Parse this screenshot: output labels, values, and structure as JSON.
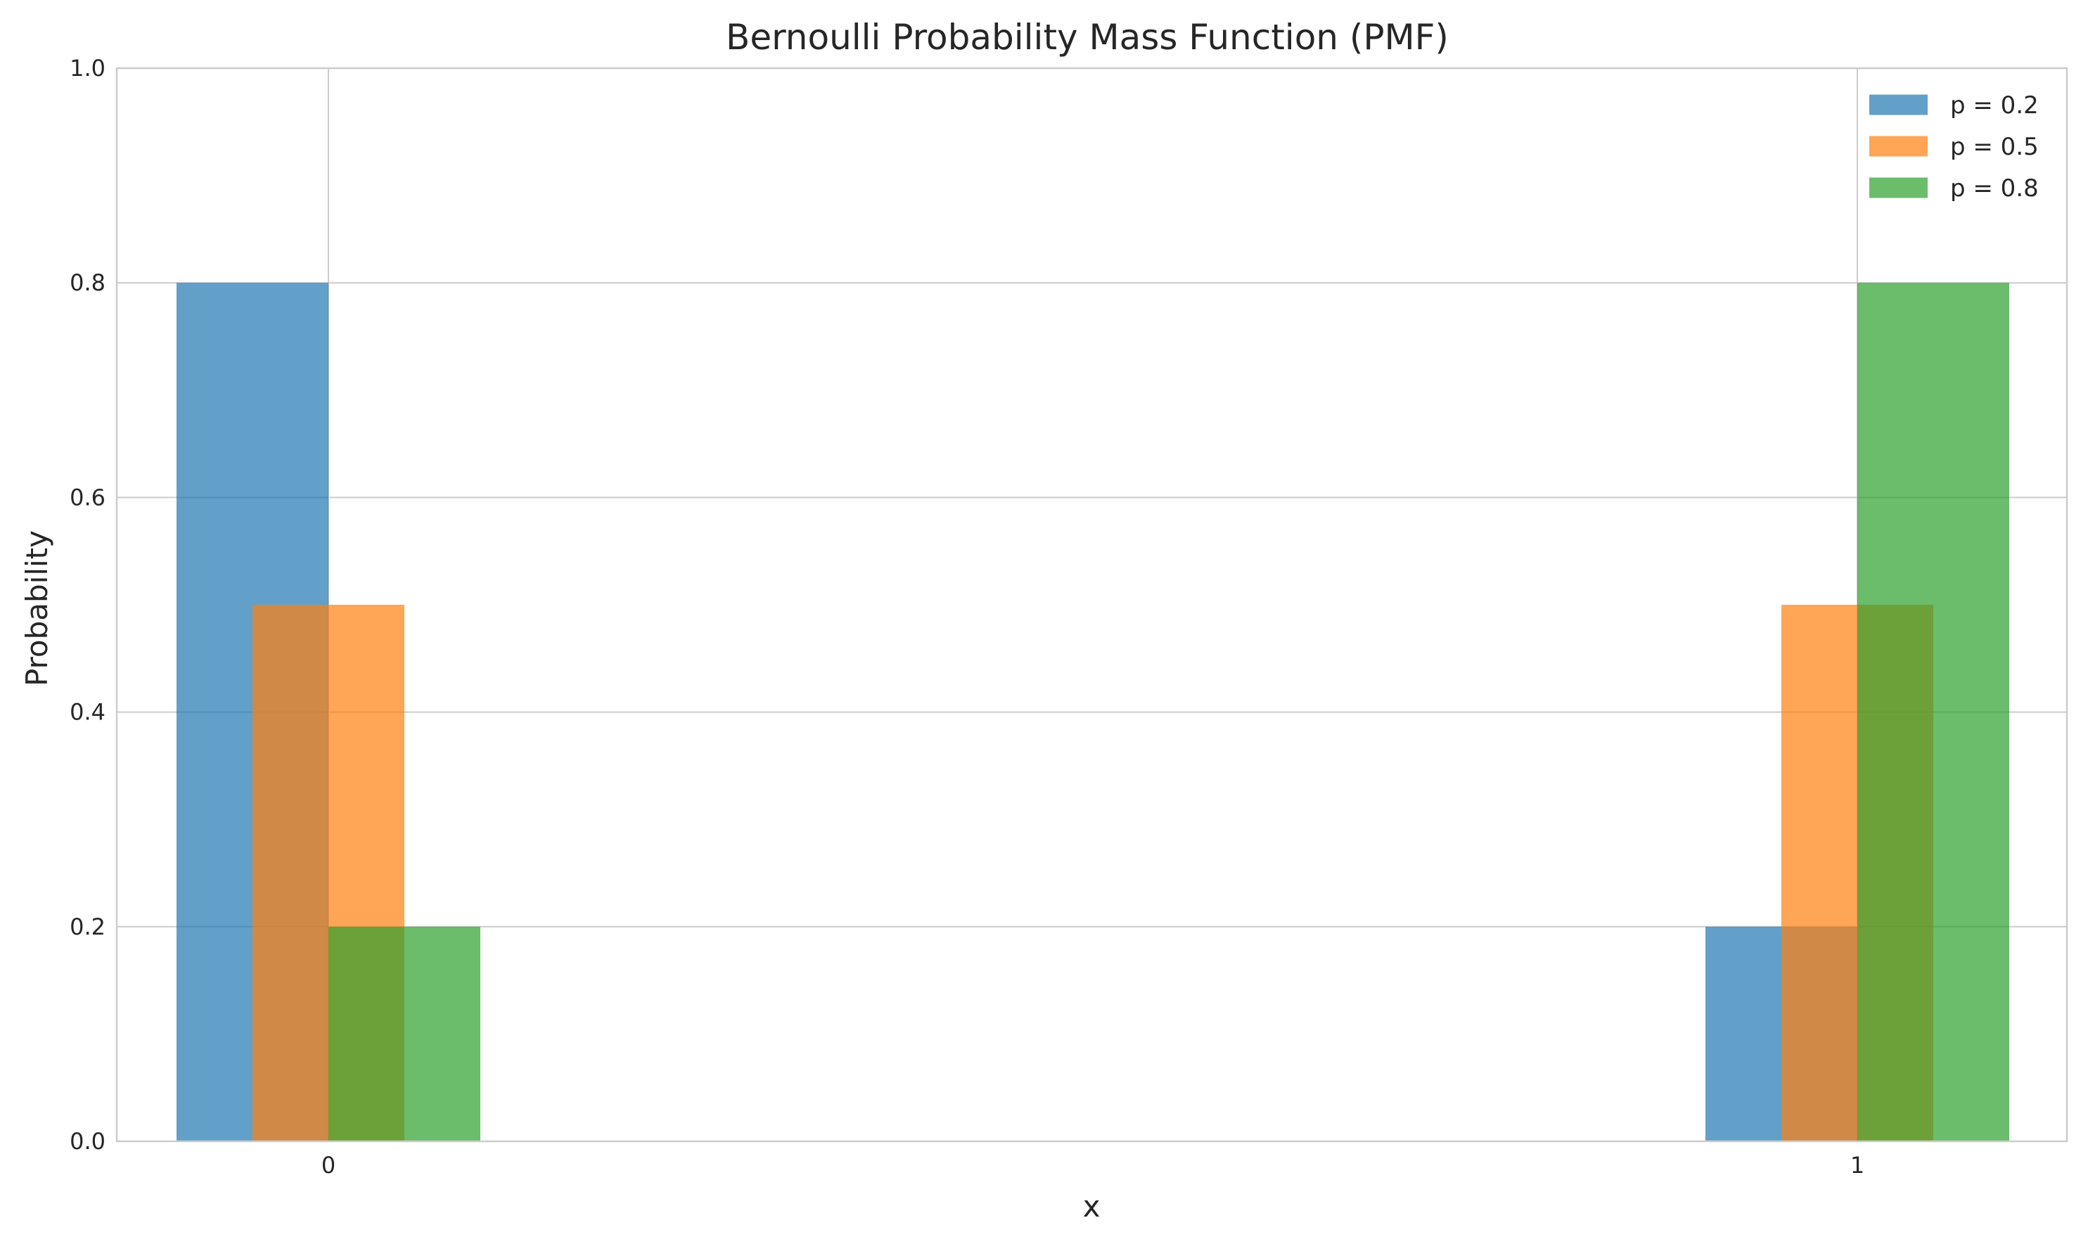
{
  "chart_data": {
    "type": "bar",
    "title": "Bernoulli Probability Mass Function (PMF)",
    "xlabel": "x",
    "ylabel": "Probability",
    "categories": [
      "0",
      "1"
    ],
    "series": [
      {
        "name": "p = 0.2",
        "values": [
          0.8,
          0.2
        ],
        "color": "#1f77b4"
      },
      {
        "name": "p = 0.5",
        "values": [
          0.5,
          0.5
        ],
        "color": "#ff7f0e"
      },
      {
        "name": "p = 0.8",
        "values": [
          0.2,
          0.8
        ],
        "color": "#2ca02c"
      }
    ],
    "ylim": [
      0,
      1.0
    ],
    "yticks": [
      "0.0",
      "0.2",
      "0.4",
      "0.6",
      "0.8",
      "1.0"
    ],
    "grid": true,
    "legend_position": "top-right",
    "bar_opacity": 0.7
  }
}
